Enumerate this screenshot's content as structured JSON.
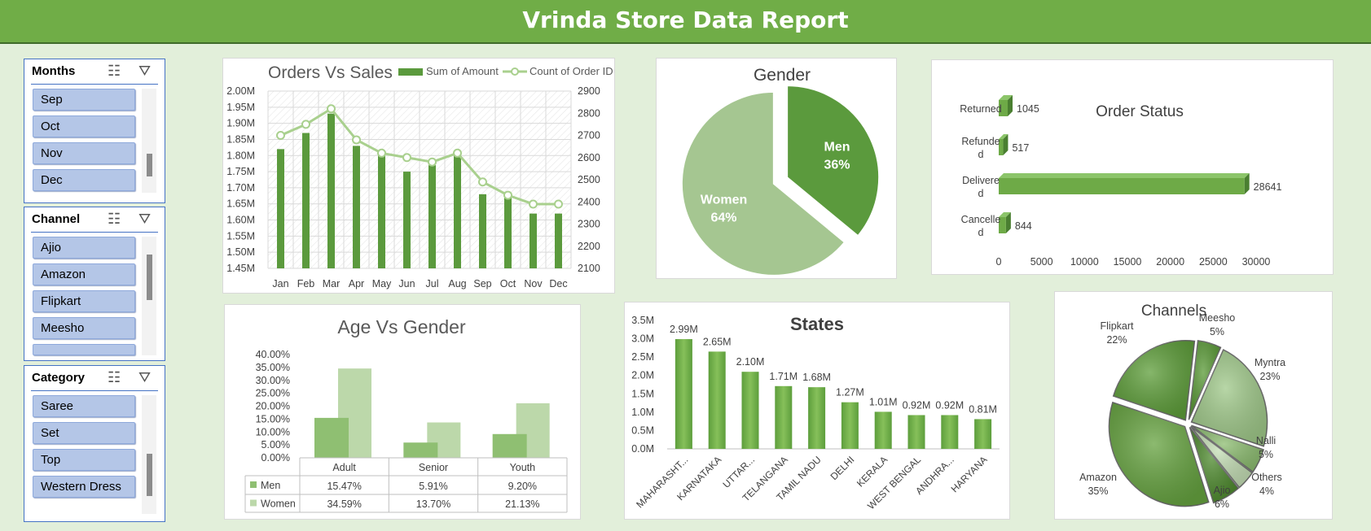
{
  "header": {
    "title": "Vrinda Store Data Report"
  },
  "slicers": {
    "months": {
      "title": "Months",
      "items": [
        "Sep",
        "Oct",
        "Nov",
        "Dec"
      ]
    },
    "channel": {
      "title": "Channel",
      "items": [
        "Ajio",
        "Amazon",
        "Flipkart",
        "Meesho"
      ]
    },
    "category": {
      "title": "Category",
      "items": [
        "Saree",
        "Set",
        "Top",
        "Western Dress"
      ]
    }
  },
  "colors": {
    "accent": "#70ad47",
    "dark_green": "#5b9a3d",
    "light_green": "#a9d08e",
    "slicer_item": "#b4c6e7"
  },
  "chart_data": [
    {
      "id": "orders-vs-sales",
      "type": "bar",
      "title": "Orders Vs Sales",
      "categories": [
        "Jan",
        "Feb",
        "Mar",
        "Apr",
        "May",
        "Jun",
        "Jul",
        "Aug",
        "Sep",
        "Oct",
        "Nov",
        "Dec"
      ],
      "series": [
        {
          "name": "Sum of Amount",
          "kind": "bar",
          "axis": "left",
          "values": [
            1.82,
            1.87,
            1.93,
            1.83,
            1.8,
            1.75,
            1.77,
            1.8,
            1.68,
            1.67,
            1.62,
            1.62
          ]
        },
        {
          "name": "Count of Order ID",
          "kind": "line",
          "axis": "right",
          "values": [
            2700,
            2750,
            2820,
            2680,
            2620,
            2600,
            2580,
            2620,
            2490,
            2430,
            2390,
            2390
          ]
        }
      ],
      "y_left": {
        "min": 1.45,
        "max": 2.0,
        "ticks": [
          "2.00M",
          "1.95M",
          "1.90M",
          "1.85M",
          "1.80M",
          "1.75M",
          "1.70M",
          "1.65M",
          "1.60M",
          "1.55M",
          "1.50M",
          "1.45M"
        ]
      },
      "y_right": {
        "min": 2100,
        "max": 2900,
        "ticks": [
          "2900",
          "2800",
          "2700",
          "2600",
          "2500",
          "2400",
          "2300",
          "2200",
          "2100"
        ]
      },
      "legend": "top-right",
      "grid": true
    },
    {
      "id": "gender",
      "type": "pie",
      "title": "Gender",
      "slices": [
        {
          "label": "Men",
          "value": 36,
          "pct_label": "36%"
        },
        {
          "label": "Women",
          "value": 64,
          "pct_label": "64%"
        }
      ]
    },
    {
      "id": "order-status",
      "type": "bar",
      "orientation": "horizontal",
      "title": "Order Status",
      "categories": [
        "Returned",
        "Refunded",
        "Delivered",
        "Cancelled"
      ],
      "category_lines": [
        [
          "Returned"
        ],
        [
          "Refunde",
          "d"
        ],
        [
          "Delivere",
          "d"
        ],
        [
          "Cancelle",
          "d"
        ]
      ],
      "values": [
        1045,
        517,
        28641,
        844
      ],
      "x_ticks": [
        "0",
        "5000",
        "10000",
        "15000",
        "20000",
        "25000",
        "30000"
      ],
      "xlim": [
        0,
        30000
      ]
    },
    {
      "id": "age-vs-gender",
      "type": "bar",
      "title": "Age Vs Gender",
      "categories": [
        "Adult",
        "Senior",
        "Youth"
      ],
      "series": [
        {
          "name": "Men",
          "values": [
            15.47,
            5.91,
            9.2
          ],
          "labels": [
            "15.47%",
            "5.91%",
            "9.20%"
          ]
        },
        {
          "name": "Women",
          "values": [
            34.59,
            13.7,
            21.13
          ],
          "labels": [
            "34.59%",
            "13.70%",
            "21.13%"
          ]
        }
      ],
      "y_ticks": [
        "40.00%",
        "35.00%",
        "30.00%",
        "25.00%",
        "20.00%",
        "15.00%",
        "10.00%",
        "5.00%",
        "0.00%"
      ],
      "ylim": [
        0,
        40
      ],
      "data_table": true
    },
    {
      "id": "states",
      "type": "bar",
      "title": "States",
      "categories": [
        "MAHARASHT...",
        "KARNATAKA",
        "UTTAR...",
        "TELANGANA",
        "TAMIL NADU",
        "DELHI",
        "KERALA",
        "WEST BENGAL",
        "ANDHRA...",
        "HARYANA"
      ],
      "values": [
        2.99,
        2.65,
        2.1,
        1.71,
        1.68,
        1.27,
        1.01,
        0.92,
        0.92,
        0.81
      ],
      "labels": [
        "2.99M",
        "2.65M",
        "2.10M",
        "1.71M",
        "1.68M",
        "1.27M",
        "1.01M",
        "0.92M",
        "0.92M",
        "0.81M"
      ],
      "y_ticks": [
        "3.5M",
        "3.0M",
        "2.5M",
        "2.0M",
        "1.5M",
        "1.0M",
        "0.5M",
        "0.0M"
      ],
      "ylim": [
        0,
        3.5
      ]
    },
    {
      "id": "channels",
      "type": "pie",
      "title": "Channels",
      "slices": [
        {
          "label": "Meesho",
          "value": 5,
          "pct_label": "5%"
        },
        {
          "label": "Myntra",
          "value": 23,
          "pct_label": "23%"
        },
        {
          "label": "Nalli",
          "value": 5,
          "pct_label": "5%"
        },
        {
          "label": "Others",
          "value": 4,
          "pct_label": "4%"
        },
        {
          "label": "Ajio",
          "value": 6,
          "pct_label": "6%"
        },
        {
          "label": "Amazon",
          "value": 35,
          "pct_label": "35%"
        },
        {
          "label": "Flipkart",
          "value": 22,
          "pct_label": "22%"
        }
      ]
    }
  ]
}
